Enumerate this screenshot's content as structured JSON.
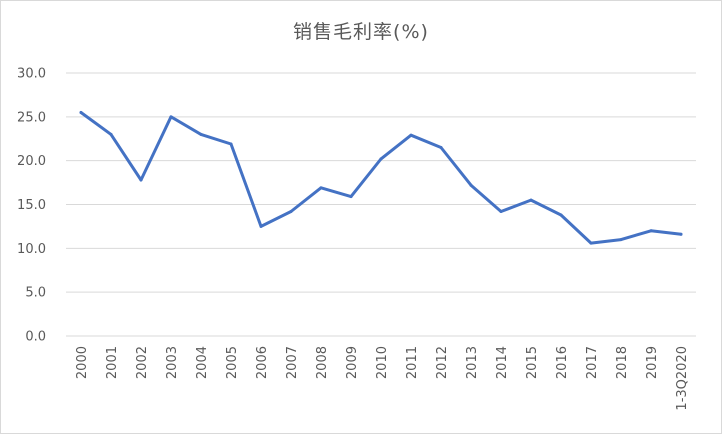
{
  "chart_data": {
    "type": "line",
    "title": "销售毛利率(%)",
    "xlabel": "",
    "ylabel": "",
    "ylim": [
      0,
      30
    ],
    "yticks": [
      "0.0",
      "5.0",
      "10.0",
      "15.0",
      "20.0",
      "25.0",
      "30.0"
    ],
    "grid": true,
    "legend": "none",
    "categories": [
      "2000",
      "2001",
      "2002",
      "2003",
      "2004",
      "2005",
      "2006",
      "2007",
      "2008",
      "2009",
      "2010",
      "2011",
      "2012",
      "2013",
      "2014",
      "2015",
      "2016",
      "2017",
      "2018",
      "2019",
      "1-3Q2020"
    ],
    "series": [
      {
        "values": [
          25.5,
          23.0,
          17.8,
          25.0,
          23.0,
          21.9,
          12.5,
          14.2,
          16.9,
          15.9,
          20.2,
          22.9,
          21.5,
          17.2,
          14.2,
          15.5,
          13.8,
          10.6,
          11.0,
          12.0,
          11.6
        ],
        "color": "#4472c4"
      }
    ]
  }
}
